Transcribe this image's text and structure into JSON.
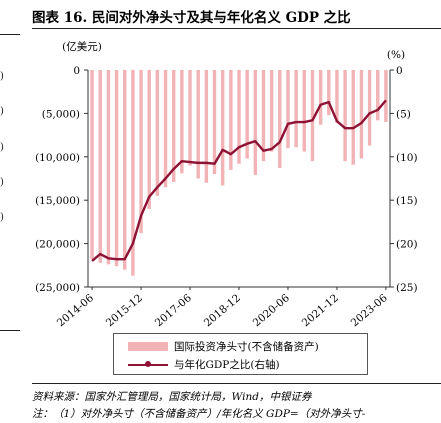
{
  "figure": {
    "title": "图表 16. 民间对外净头寸及其与年化名义 GDP 之比",
    "source": "资料来源：国家外汇管理局，国家统计局，Wind，中银证券",
    "note": "注：（1）对外净头寸（不含储备资产）/年化名义 GDP=（对外净头寸-"
  },
  "left_edge": {
    "fragments": [
      ")",
      ")",
      ")",
      ")",
      ")"
    ]
  },
  "chart_data": {
    "type": "bar",
    "xlabel": "",
    "ylabel": "",
    "left_axis": {
      "unit": "(亿美元)",
      "ylim": [
        -25000,
        0
      ],
      "ticks": [
        0,
        -5000,
        -10000,
        -15000,
        -20000,
        -25000
      ],
      "tick_labels": [
        "0",
        "(5,000)",
        "(10,000)",
        "(15,000)",
        "(20,000)",
        "(25,000)"
      ]
    },
    "right_axis": {
      "unit": "(%)",
      "ylim": [
        0,
        25
      ],
      "inverted": true,
      "ticks": [
        0,
        5,
        10,
        15,
        20,
        25
      ],
      "tick_labels": [
        "0",
        "(5)",
        "(10)",
        "(15)",
        "(20)",
        "(25)"
      ]
    },
    "x_tick_labels": [
      "2014-06",
      "2015-12",
      "2017-06",
      "2018-12",
      "2020-06",
      "2021-12",
      "2023-06"
    ],
    "categories": [
      "2014-06",
      "2014-09",
      "2014-12",
      "2015-03",
      "2015-06",
      "2015-09",
      "2015-12",
      "2016-03",
      "2016-06",
      "2016-09",
      "2016-12",
      "2017-03",
      "2017-06",
      "2017-09",
      "2017-12",
      "2018-03",
      "2018-06",
      "2018-09",
      "2018-12",
      "2019-03",
      "2019-06",
      "2019-09",
      "2019-12",
      "2020-03",
      "2020-06",
      "2020-09",
      "2020-12",
      "2021-03",
      "2021-06",
      "2021-09",
      "2021-12",
      "2022-03",
      "2022-06",
      "2022-09",
      "2022-12",
      "2023-03",
      "2023-06"
    ],
    "series": [
      {
        "name": "国际投资净头寸(不含储备资产)",
        "type": "bar",
        "axis": "left",
        "color": "#f2b3b6",
        "values": [
          -21800,
          -22200,
          -22400,
          -22600,
          -23000,
          -23700,
          -18800,
          -16000,
          -14500,
          -13500,
          -12900,
          -11900,
          -11000,
          -12500,
          -13000,
          -12000,
          -13300,
          -11500,
          -10800,
          -10200,
          -12100,
          -10500,
          -9400,
          -11300,
          -9000,
          -8900,
          -9400,
          -10500,
          -6300,
          -5200,
          -6100,
          -10500,
          -10900,
          -10200,
          -8700,
          -5800,
          -6000
        ]
      },
      {
        "name": "与年化GDP之比(右轴)",
        "type": "line",
        "axis": "right",
        "color": "#8e1234",
        "values": [
          22.0,
          21.2,
          21.7,
          21.8,
          21.8,
          20.0,
          16.8,
          14.6,
          13.5,
          12.5,
          11.4,
          10.5,
          10.6,
          10.7,
          10.7,
          10.8,
          9.2,
          9.7,
          8.9,
          8.5,
          8.2,
          9.3,
          9.1,
          8.3,
          6.2,
          6.0,
          6.0,
          5.8,
          4.0,
          3.7,
          5.9,
          6.7,
          6.7,
          6.1,
          5.0,
          4.6,
          3.5
        ]
      }
    ],
    "legend": {
      "placement": "bottom",
      "items": [
        "国际投资净头寸(不含储备资产)",
        "与年化GDP之比(右轴)"
      ]
    }
  }
}
